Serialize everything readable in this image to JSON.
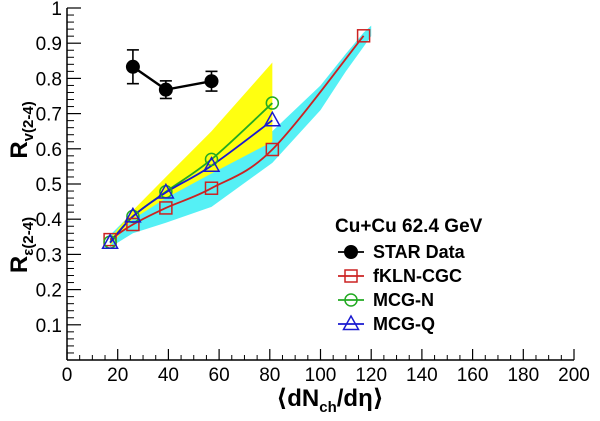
{
  "chart_data": {
    "type": "line",
    "title": "",
    "xlabel": "⟨dN_ch/dη⟩",
    "ylabel_top": "R_v(2-4)",
    "ylabel_bottom": "R_ε(2-4)",
    "xlim": [
      0,
      200
    ],
    "ylim": [
      0,
      1
    ],
    "grid": false,
    "x_tick_labels": [
      "0",
      "20",
      "40",
      "60",
      "80",
      "100",
      "120",
      "140",
      "160",
      "180",
      "200"
    ],
    "y_tick_labels": [
      "0.1",
      "0.2",
      "0.3",
      "0.4",
      "0.5",
      "0.6",
      "0.7",
      "0.8",
      "0.9",
      "1"
    ],
    "legend": {
      "placement": "lower-right",
      "title": "Cu+Cu 62.4 GeV",
      "entries": [
        {
          "label": "STAR Data",
          "color": "#000000",
          "marker": "filled-circle"
        },
        {
          "label": "fKLN-CGC",
          "color": "#cc2222",
          "marker": "open-square"
        },
        {
          "label": "MCG-N",
          "color": "#22aa22",
          "marker": "open-circle"
        },
        {
          "label": "MCG-Q",
          "color": "#1a1ad0",
          "marker": "open-triangle"
        }
      ]
    },
    "series": [
      {
        "name": "STAR Data",
        "color": "#000000",
        "x": [
          26,
          39,
          57
        ],
        "y": [
          0.833,
          0.768,
          0.792
        ],
        "yerr": [
          0.048,
          0.025,
          0.028
        ]
      },
      {
        "name": "fKLN-CGC",
        "color": "#cc2222",
        "x": [
          17,
          26,
          39,
          57,
          81,
          117
        ],
        "y": [
          0.342,
          0.385,
          0.432,
          0.488,
          0.598,
          0.921
        ],
        "band": {
          "color": "#55f0f5",
          "x": [
            17,
            26,
            39,
            57,
            81,
            100,
            110,
            117,
            120
          ],
          "upper": [
            0.355,
            0.42,
            0.48,
            0.55,
            0.65,
            0.78,
            0.87,
            0.93,
            0.95
          ],
          "lower": [
            0.32,
            0.36,
            0.39,
            0.435,
            0.56,
            0.71,
            0.82,
            0.89,
            0.92
          ]
        }
      },
      {
        "name": "MCG-N",
        "color": "#22aa22",
        "x": [
          17,
          26,
          39,
          57,
          81
        ],
        "y": [
          0.335,
          0.408,
          0.478,
          0.57,
          0.73
        ],
        "band": {
          "color": "#ffff10",
          "x": [
            17,
            26,
            39,
            57,
            81
          ],
          "upper": [
            0.345,
            0.425,
            0.52,
            0.65,
            0.845
          ],
          "lower": [
            0.325,
            0.4,
            0.46,
            0.53,
            0.62
          ]
        }
      },
      {
        "name": "MCG-Q",
        "color": "#1a1ad0",
        "x": [
          17,
          26,
          39,
          57,
          81
        ],
        "y": [
          0.333,
          0.408,
          0.476,
          0.552,
          0.681
        ]
      }
    ]
  }
}
